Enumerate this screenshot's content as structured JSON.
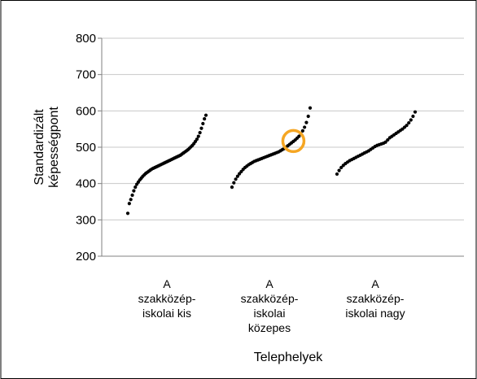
{
  "chart_data": {
    "type": "scatter",
    "title": "",
    "xlabel": "Telephelyek",
    "ylabel_lines": [
      "Standardizált",
      "képességpont"
    ],
    "ylim": [
      200,
      800
    ],
    "yticks": [
      200,
      300,
      400,
      500,
      600,
      700,
      800
    ],
    "grid": true,
    "categories": [
      [
        "A",
        "szakközép-",
        "iskolai kis"
      ],
      [
        "A",
        "szakközép-",
        "iskolai",
        "közepes"
      ],
      [
        "A",
        "szakközép-",
        "iskolai nagy"
      ]
    ],
    "series": [
      {
        "category_index": 0,
        "values": [
          318,
          345,
          356,
          368,
          380,
          390,
          398,
          404,
          410,
          415,
          420,
          424,
          428,
          431,
          434,
          437,
          440,
          442,
          444,
          446,
          448,
          450,
          452,
          454,
          456,
          458,
          460,
          462,
          464,
          466,
          468,
          470,
          472,
          474,
          476,
          478,
          481,
          484,
          487,
          490,
          493,
          497,
          501,
          505,
          510,
          516,
          522,
          530,
          540,
          552,
          565,
          578,
          588
        ]
      },
      {
        "category_index": 1,
        "values": [
          390,
          402,
          412,
          420,
          427,
          433,
          439,
          444,
          448,
          452,
          455,
          458,
          461,
          463,
          465,
          467,
          469,
          471,
          473,
          475,
          477,
          479,
          481,
          483,
          485,
          487,
          490,
          493,
          496,
          500,
          504,
          508,
          512,
          516,
          520,
          525,
          530,
          537,
          545,
          555,
          568,
          585,
          608
        ]
      },
      {
        "category_index": 2,
        "values": [
          426,
          436,
          444,
          450,
          455,
          459,
          463,
          466,
          469,
          472,
          475,
          478,
          481,
          484,
          487,
          490,
          494,
          498,
          502,
          505,
          507,
          509,
          511,
          514,
          520,
          526,
          530,
          534,
          538,
          542,
          546,
          550,
          555,
          560,
          567,
          575,
          585,
          597
        ]
      }
    ],
    "highlight": {
      "category_index": 1,
      "value": 517,
      "color": "#f5a623"
    },
    "point_color": "#000000"
  }
}
